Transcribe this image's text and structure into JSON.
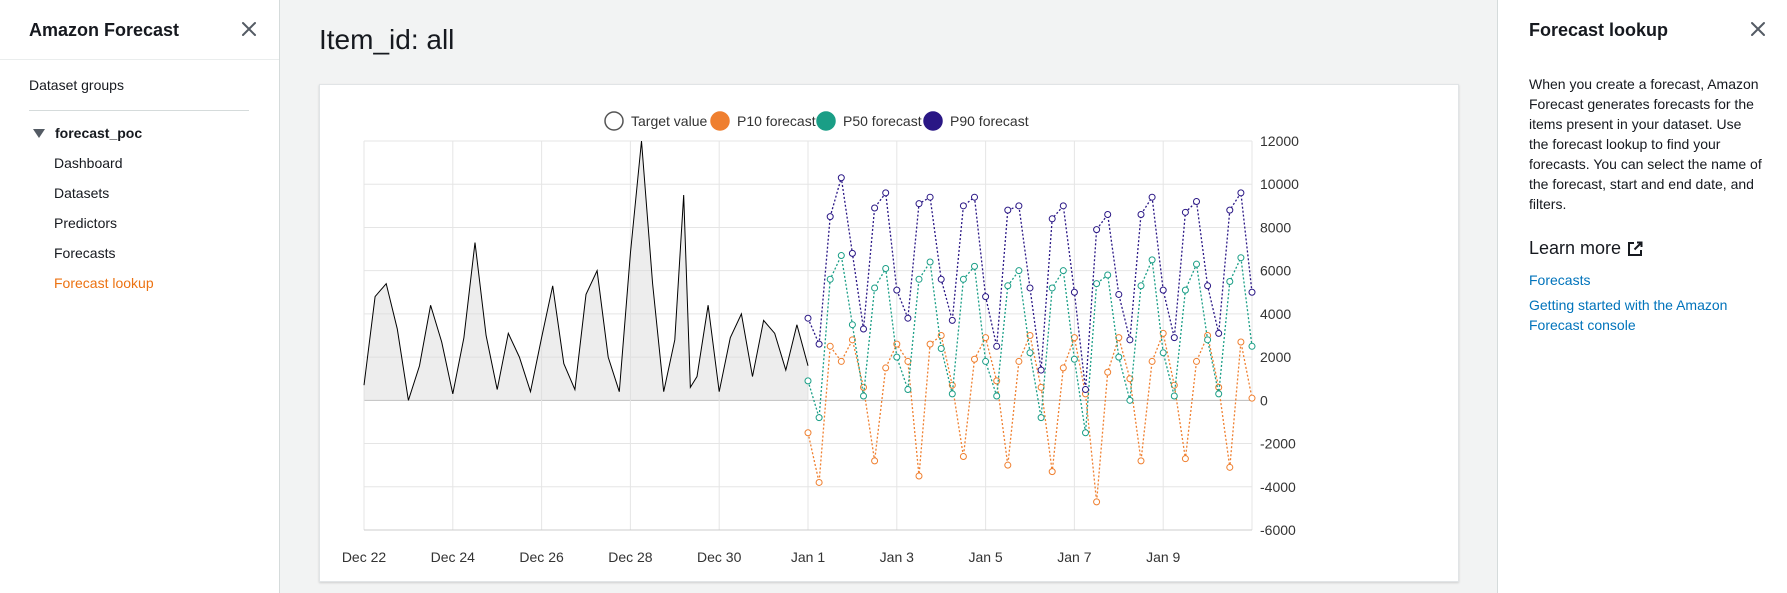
{
  "left_nav": {
    "title": "Amazon Forecast",
    "dataset_groups": "Dataset groups",
    "group_name": "forecast_poc",
    "items": [
      {
        "label": "Dashboard",
        "active": false
      },
      {
        "label": "Datasets",
        "active": false
      },
      {
        "label": "Predictors",
        "active": false
      },
      {
        "label": "Forecasts",
        "active": false
      },
      {
        "label": "Forecast lookup",
        "active": true
      }
    ]
  },
  "main": {
    "title": "Item_id: all"
  },
  "right_panel": {
    "title": "Forecast lookup",
    "body": "When you create a forecast, Amazon Forecast generates forecasts for the items present in your dataset. Use the forecast lookup to find your forecasts. You can select the name of the forecast, start and end date, and filters.",
    "learn_more": "Learn more",
    "links": [
      "Forecasts",
      "Getting started with the Amazon Forecast console"
    ]
  },
  "colors": {
    "accent": "#ec7211",
    "link": "#0073bb",
    "target": "#000000",
    "p10": "#ef7f2f",
    "p50": "#1a9e86",
    "p90": "#2a1785"
  },
  "icons": [
    "close-icon",
    "external-link-icon",
    "caret-down-icon"
  ],
  "chart_data": {
    "type": "line",
    "legend": [
      "Target value",
      "P10 forecast",
      "P50 forecast",
      "P90 forecast"
    ],
    "legend_position": "top-center",
    "x_ticks": [
      "Dec 22",
      "Dec 24",
      "Dec 26",
      "Dec 28",
      "Dec 30",
      "Jan 1",
      "Jan 3",
      "Jan 5",
      "Jan 7",
      "Jan 9"
    ],
    "x_range": [
      "Dec 22",
      "Jan 11"
    ],
    "y_ticks": [
      "12000",
      "10000",
      "8000",
      "6000",
      "4000",
      "2000",
      "0",
      "-2000",
      "-4000",
      "-6000"
    ],
    "ylim": [
      -6000,
      12000
    ],
    "y_axis_side": "right",
    "grid": true,
    "series": [
      {
        "name": "Target value",
        "style": "solid line, area fill",
        "x_day": [
          0,
          0.25,
          0.5,
          0.75,
          1.0,
          1.25,
          1.5,
          1.75,
          2.0,
          2.25,
          2.5,
          2.75,
          3.0,
          3.25,
          3.5,
          3.75,
          4.0,
          4.25,
          4.5,
          4.75,
          5.0,
          5.25,
          5.5,
          5.75,
          6.0,
          6.25,
          6.5,
          6.75,
          7.0,
          7.2,
          7.35,
          7.5,
          7.75,
          8.0,
          8.25,
          8.5,
          8.75,
          9.0,
          9.25,
          9.5,
          9.75,
          10.0
        ],
        "y": [
          700,
          4800,
          5400,
          3300,
          0,
          1600,
          4400,
          2700,
          300,
          2900,
          7300,
          3000,
          500,
          3100,
          2000,
          400,
          2900,
          5300,
          1700,
          500,
          4900,
          6000,
          2000,
          400,
          6800,
          12000,
          5400,
          400,
          2800,
          9500,
          600,
          1100,
          4400,
          400,
          2900,
          4000,
          1100,
          3700,
          3100,
          1400,
          3500,
          1600
        ]
      },
      {
        "name": "P10 forecast",
        "style": "dotted line, open circle markers",
        "x_day": [
          10,
          10.25,
          10.5,
          10.75,
          11.0,
          11.25,
          11.5,
          11.75,
          12.0,
          12.25,
          12.5,
          12.75,
          13.0,
          13.25,
          13.5,
          13.75,
          14.0,
          14.25,
          14.5,
          14.75,
          15.0,
          15.25,
          15.5,
          15.75,
          16.0,
          16.25,
          16.5,
          16.75,
          17.0,
          17.25,
          17.5,
          17.75,
          18.0,
          18.25,
          18.5,
          18.75,
          19.0,
          19.25,
          19.5,
          19.75,
          20.0
        ],
        "y": [
          -1500,
          -3800,
          2500,
          1800,
          2800,
          600,
          -2800,
          1500,
          2600,
          1800,
          -3500,
          2600,
          3000,
          700,
          -2600,
          1900,
          2900,
          900,
          -3000,
          1800,
          3000,
          600,
          -3300,
          1500,
          2900,
          300,
          -4700,
          1300,
          2900,
          1000,
          -2800,
          1800,
          3100,
          700,
          -2700,
          1800,
          3000,
          600,
          -3100,
          2700,
          100
        ]
      },
      {
        "name": "P50 forecast",
        "style": "dotted line, open circle markers",
        "x_day": [
          10,
          10.25,
          10.5,
          10.75,
          11.0,
          11.25,
          11.5,
          11.75,
          12.0,
          12.25,
          12.5,
          12.75,
          13.0,
          13.25,
          13.5,
          13.75,
          14.0,
          14.25,
          14.5,
          14.75,
          15.0,
          15.25,
          15.5,
          15.75,
          16.0,
          16.25,
          16.5,
          16.75,
          17.0,
          17.25,
          17.5,
          17.75,
          18.0,
          18.25,
          18.5,
          18.75,
          19.0,
          19.25,
          19.5,
          19.75,
          20.0
        ],
        "y": [
          900,
          -800,
          5600,
          6700,
          3500,
          200,
          5200,
          6100,
          2000,
          500,
          5600,
          6400,
          2400,
          300,
          5600,
          6200,
          1800,
          200,
          5300,
          6000,
          2200,
          -800,
          5200,
          6000,
          1900,
          -1500,
          5400,
          5800,
          2000,
          0,
          5300,
          6500,
          2200,
          200,
          5100,
          6300,
          2800,
          300,
          5500,
          6600,
          2500
        ]
      },
      {
        "name": "P90 forecast",
        "style": "dotted line, open circle markers",
        "x_day": [
          10,
          10.25,
          10.5,
          10.75,
          11.0,
          11.25,
          11.5,
          11.75,
          12.0,
          12.25,
          12.5,
          12.75,
          13.0,
          13.25,
          13.5,
          13.75,
          14.0,
          14.25,
          14.5,
          14.75,
          15.0,
          15.25,
          15.5,
          15.75,
          16.0,
          16.25,
          16.5,
          16.75,
          17.0,
          17.25,
          17.5,
          17.75,
          18.0,
          18.25,
          18.5,
          18.75,
          19.0,
          19.25,
          19.5,
          19.75,
          20.0
        ],
        "y": [
          3800,
          2600,
          8500,
          10300,
          6800,
          3300,
          8900,
          9600,
          5100,
          3800,
          9100,
          9400,
          5600,
          3700,
          9000,
          9400,
          4800,
          2500,
          8800,
          9000,
          5200,
          1400,
          8400,
          9000,
          5000,
          500,
          7900,
          8600,
          4900,
          2800,
          8600,
          9400,
          5100,
          2900,
          8700,
          9200,
          5300,
          3100,
          8800,
          9600,
          5000
        ]
      }
    ]
  }
}
